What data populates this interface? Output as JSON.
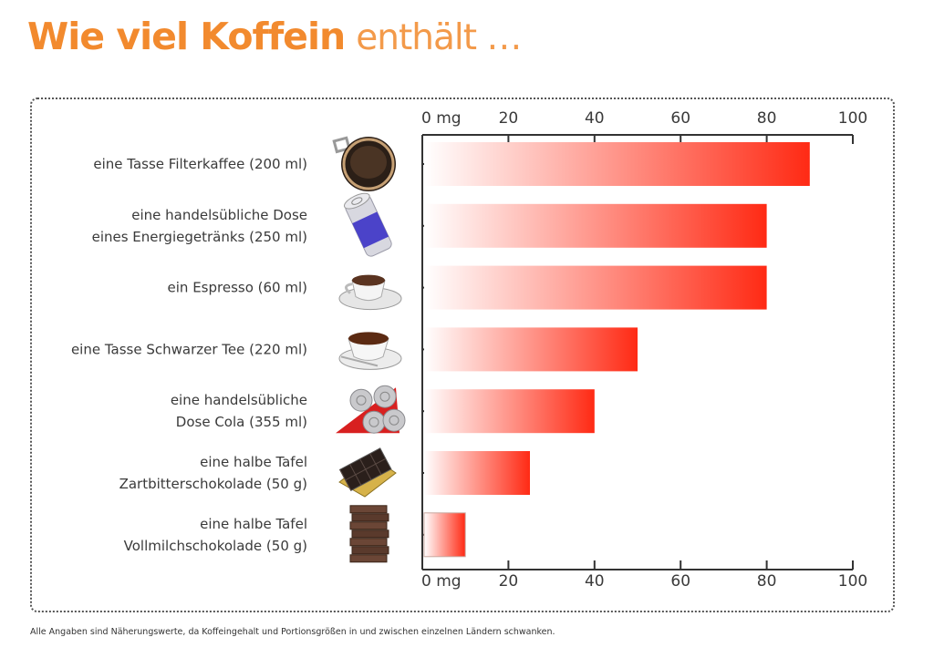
{
  "header": {
    "title_bold": "Wie viel Koffein",
    "title_light": "enthält …"
  },
  "footnote": "Alle Angaben sind Näherungswerte, da Koffeingehalt und Portionsgrößen in und zwischen einzelnen Ländern schwanken.",
  "colors": {
    "title": "#f28a2e",
    "bar_start": "#ffffff",
    "bar_end": "#ff2a14",
    "axis": "#333333"
  },
  "chart_data": {
    "type": "bar",
    "orientation": "horizontal",
    "title": "Wie viel Koffein enthält …",
    "xlabel": "",
    "ylabel": "",
    "unit": "mg",
    "xlim": [
      0,
      100
    ],
    "ticks": [
      0,
      20,
      40,
      60,
      80,
      100
    ],
    "tick_labels": [
      "0 mg",
      "20",
      "40",
      "60",
      "80",
      "100"
    ],
    "axis_position": "top-and-bottom",
    "grid": false,
    "categories": [
      {
        "lines": [
          "eine Tasse Filterkaffee (200 ml)"
        ],
        "icon": "filter-coffee-icon"
      },
      {
        "lines": [
          "eine handelsübliche Dose",
          "eines Energiegetränks (250 ml)"
        ],
        "icon": "energy-drink-can-icon"
      },
      {
        "lines": [
          "ein Espresso (60 ml)"
        ],
        "icon": "espresso-cup-icon"
      },
      {
        "lines": [
          "eine Tasse Schwarzer Tee (220 ml)"
        ],
        "icon": "tea-cup-icon"
      },
      {
        "lines": [
          "eine handelsübliche",
          "Dose Cola (355 ml)"
        ],
        "icon": "cola-cans-icon"
      },
      {
        "lines": [
          "eine halbe Tafel",
          "Zartbitterschokolade (50 g)"
        ],
        "icon": "dark-chocolate-icon"
      },
      {
        "lines": [
          "eine halbe Tafel",
          "Vollmilchschokolade (50 g)"
        ],
        "icon": "milk-chocolate-icon"
      }
    ],
    "values": [
      90,
      80,
      80,
      50,
      40,
      25,
      10
    ]
  }
}
